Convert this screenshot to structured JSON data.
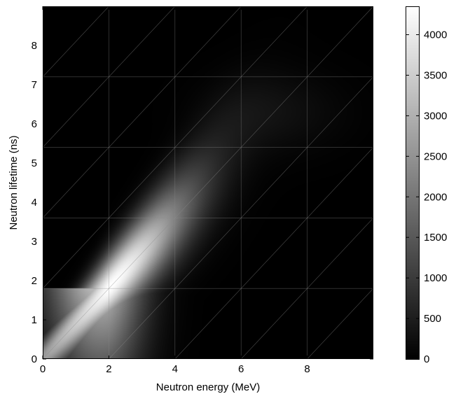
{
  "chart_data": {
    "type": "heatmap",
    "title": "",
    "xlabel": "Neutron energy (MeV)",
    "ylabel": "Neutron lifetime (ns)",
    "xlim": [
      0,
      10
    ],
    "ylim": [
      0,
      9
    ],
    "x_ticks": [
      0,
      2,
      4,
      6,
      8
    ],
    "y_ticks": [
      0,
      1,
      2,
      3,
      4,
      5,
      6,
      7,
      8
    ],
    "colormap": "gray",
    "colorbar": {
      "range": [
        0,
        4350
      ],
      "ticks": [
        0,
        500,
        1000,
        1500,
        2000,
        2500,
        3000,
        3500,
        4000
      ]
    },
    "peak": {
      "x": 2.0,
      "y": 1.8,
      "value": 4350
    },
    "ridge": {
      "description_free_points": [
        [
          0,
          0.0
        ],
        [
          2,
          1.8
        ],
        [
          4,
          3.6
        ],
        [
          6,
          5.4
        ],
        [
          8,
          7.2
        ]
      ]
    },
    "grid_columns_x": [
      0,
      2,
      4,
      6,
      8,
      10
    ],
    "grid_rows_y": [
      0,
      1.8,
      3.6,
      5.4,
      7.2,
      9
    ],
    "grid": true
  }
}
